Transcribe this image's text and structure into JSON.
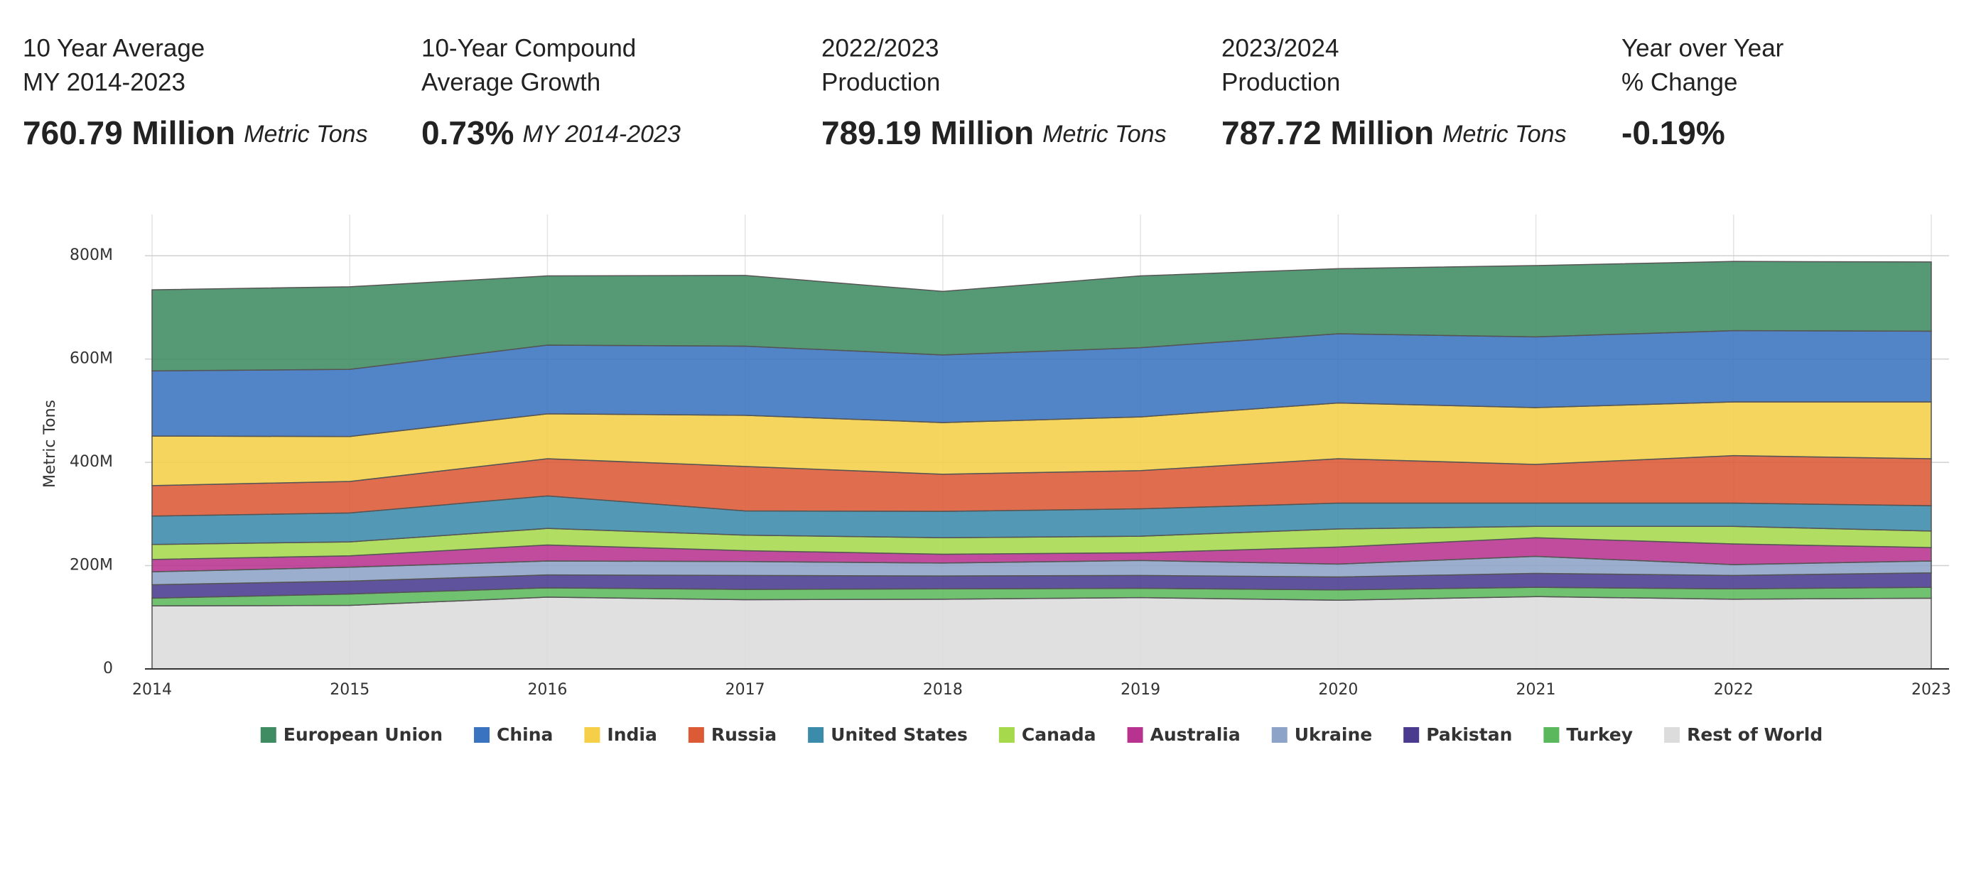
{
  "stats": [
    {
      "label_lines": [
        "10 Year Average",
        "MY 2014-2023"
      ],
      "value": "760.79 Million",
      "unit": "Metric Tons"
    },
    {
      "label_lines": [
        "10-Year Compound",
        "Average Growth"
      ],
      "value": "0.73%",
      "unit": "MY 2014-2023"
    },
    {
      "label_lines": [
        "2022/2023",
        "Production"
      ],
      "value": "789.19 Million",
      "unit": "Metric Tons"
    },
    {
      "label_lines": [
        "2023/2024",
        "Production"
      ],
      "value": "787.72 Million",
      "unit": "Metric Tons"
    },
    {
      "label_lines": [
        "Year over Year",
        "% Change"
      ],
      "value": "-0.19%"
    }
  ],
  "chart_data": {
    "type": "stacked-area",
    "y_label": "Metric Tons",
    "x": [
      2014,
      2015,
      2016,
      2017,
      2018,
      2019,
      2020,
      2021,
      2022,
      2023
    ],
    "xlim": [
      2014,
      2023
    ],
    "xticks": [
      2014,
      2015,
      2016,
      2017,
      2018,
      2019,
      2020,
      2021,
      2022,
      2023
    ],
    "ylim": [
      0,
      880000000
    ],
    "yticks": [
      0,
      {
        "value": 200000000,
        "label": "200M"
      },
      {
        "value": 400000000,
        "label": "400M"
      },
      {
        "value": 600000000,
        "label": "600M"
      },
      {
        "value": 800000000,
        "label": "800M"
      }
    ],
    "grid": true,
    "series": [
      {
        "name": "European Union",
        "color": "#3f8c62",
        "values": [
          157000000,
          160000000,
          134000000,
          137000000,
          123000000,
          139000000,
          126000000,
          138000000,
          134000000,
          134000000
        ]
      },
      {
        "name": "China",
        "color": "#3a74c0",
        "values": [
          126000000,
          130000000,
          133000000,
          134000000,
          131000000,
          134000000,
          134000000,
          137000000,
          138000000,
          137000000
        ]
      },
      {
        "name": "India",
        "color": "#f5cf48",
        "values": [
          96000000,
          87000000,
          87000000,
          99000000,
          100000000,
          104000000,
          108000000,
          110000000,
          104000000,
          110000000
        ]
      },
      {
        "name": "Russia",
        "color": "#dc5a35",
        "values": [
          59000000,
          61000000,
          72000000,
          86000000,
          72000000,
          74000000,
          86000000,
          75000000,
          92000000,
          91000000
        ]
      },
      {
        "name": "United States",
        "color": "#3b8bab",
        "values": [
          55000000,
          56000000,
          63000000,
          47000000,
          51000000,
          53000000,
          50000000,
          45000000,
          45000000,
          49000000
        ]
      },
      {
        "name": "Canada",
        "color": "#a6d94c",
        "values": [
          29000000,
          27000000,
          32000000,
          30000000,
          32000000,
          32000000,
          35000000,
          22000000,
          34000000,
          32000000
        ]
      },
      {
        "name": "Australia",
        "color": "#b8338f",
        "values": [
          24000000,
          22000000,
          31000000,
          21000000,
          17000000,
          15000000,
          33000000,
          36000000,
          40000000,
          26000000
        ]
      },
      {
        "name": "Ukraine",
        "color": "#8da3c7",
        "values": [
          25000000,
          27000000,
          27000000,
          27000000,
          25000000,
          29000000,
          25000000,
          33000000,
          21000000,
          23000000
        ]
      },
      {
        "name": "Pakistan",
        "color": "#4a3b8f",
        "values": [
          26000000,
          25000000,
          25000000,
          27000000,
          25000000,
          25000000,
          25000000,
          27000000,
          26000000,
          28000000
        ]
      },
      {
        "name": "Turkey",
        "color": "#5cb85c",
        "values": [
          15000000,
          22000000,
          18000000,
          20000000,
          20000000,
          18000000,
          20000000,
          18000000,
          20000000,
          21000000
        ]
      },
      {
        "name": "Rest of World",
        "color": "#dcdcdc",
        "values": [
          122000000,
          123000000,
          139000000,
          134000000,
          135000000,
          138000000,
          133000000,
          140000000,
          135000000,
          137000000
        ]
      }
    ]
  }
}
